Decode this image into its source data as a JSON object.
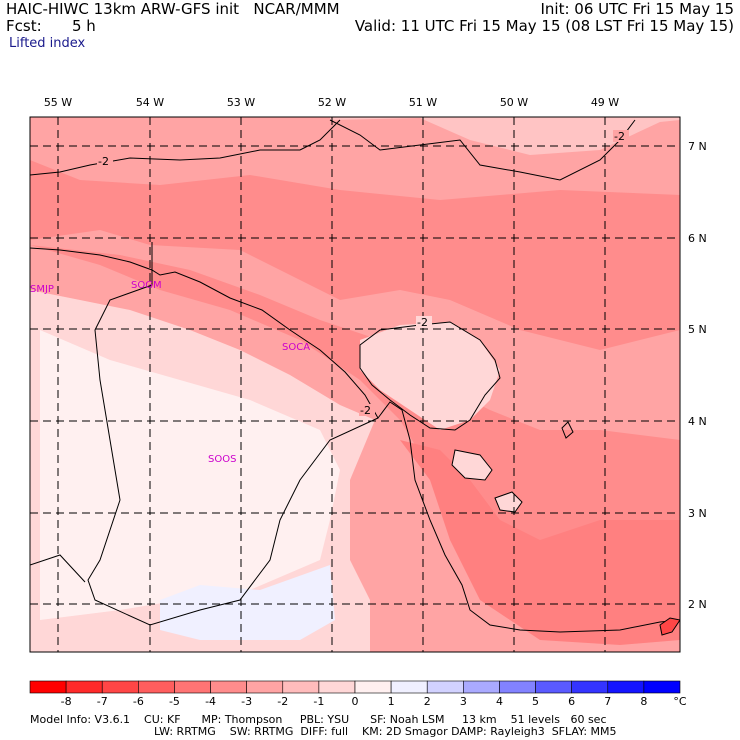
{
  "header": {
    "title": "HAIC-HIWC 13km ARW-GFS init   NCAR/MMM",
    "init": "Init: 06 UTC Fri 15 May 15",
    "fcst_label": "Fcst:",
    "fcst_value": "5 h",
    "valid": "Valid: 11 UTC Fri 15 May 15 (08 LST Fri 15 May 15)",
    "field": "Lifted index"
  },
  "map": {
    "lon_labels": [
      "55 W",
      "54 W",
      "53 W",
      "52 W",
      "51 W",
      "50 W",
      "49 W"
    ],
    "lat_labels": [
      "7 N",
      "6 N",
      "5 N",
      "4 N",
      "3 N",
      "2 N"
    ],
    "contour_labels": [
      "-2",
      "-2",
      "-2",
      "-2"
    ],
    "stations": [
      "SMJP",
      "SOGM",
      "SOCA",
      "SOOS"
    ]
  },
  "colorbar": {
    "ticks": [
      "-8",
      "-7",
      "-6",
      "-5",
      "-4",
      "-3",
      "-2",
      "-1",
      "0",
      "1",
      "2",
      "3",
      "4",
      "5",
      "6",
      "7",
      "8"
    ],
    "unit": "°C",
    "colors": [
      "#ff0000",
      "#ff2a2a",
      "#ff4646",
      "#ff5e5e",
      "#ff7474",
      "#ff8c8c",
      "#ffa4a4",
      "#ffbcbc",
      "#ffd7d7",
      "#fff0f0",
      "#f0f0ff",
      "#d2d2ff",
      "#aaaaff",
      "#8282ff",
      "#5a5aff",
      "#3434ff",
      "#1414ff",
      "#0000ff"
    ]
  },
  "footer": {
    "line1": "Model Info: V3.6.1    CU: KF      MP: Thompson     PBL: YSU      SF: Noah LSM     13 km    51 levels   60 sec",
    "line2": "LW: RRTMG    SW: RRTMG  DIFF: full    KM: 2D Smagor DAMP: Rayleigh3  SFLAY: MM5"
  }
}
